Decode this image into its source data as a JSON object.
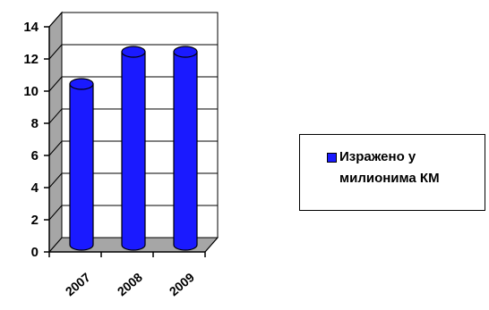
{
  "chart_data": {
    "type": "bar",
    "style": "3d-cylinder",
    "categories": [
      "2007",
      "2008",
      "2009"
    ],
    "series": [
      {
        "name": "Изражено у милионима КМ",
        "values": [
          10,
          12,
          12
        ],
        "color": "#1a1aff"
      }
    ],
    "yticks": [
      "0",
      "2",
      "4",
      "6",
      "8",
      "10",
      "12",
      "14"
    ],
    "ylim": [
      0,
      14
    ],
    "grid": true,
    "legend": "right"
  }
}
